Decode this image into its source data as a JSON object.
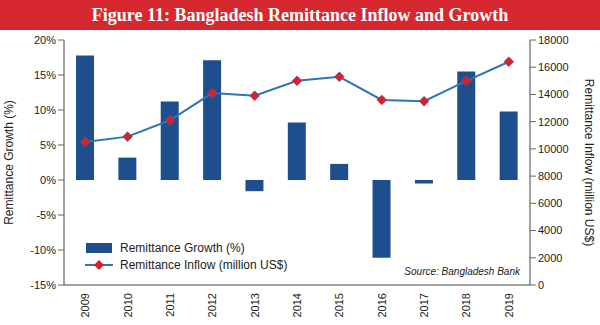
{
  "chart_data": {
    "type": "bar",
    "title": "Figure 11: Bangladesh Remittance Inflow and Growth",
    "categories": [
      "2009",
      "2010",
      "2011",
      "2012",
      "2013",
      "2014",
      "2015",
      "2016",
      "2017",
      "2018",
      "2019"
    ],
    "series": [
      {
        "name": "Remittance Growth (%)",
        "type": "bar",
        "color": "#1f4e8c",
        "values": [
          17.8,
          3.2,
          11.2,
          17.1,
          -1.6,
          8.2,
          2.3,
          -11.1,
          -0.5,
          15.5,
          9.8
        ]
      },
      {
        "name": "Remittance Inflow (million US$)",
        "type": "line",
        "color": "#2e75b6",
        "marker": "diamond",
        "axis": "y2",
        "values": [
          10500,
          10900,
          12100,
          14100,
          13900,
          15000,
          15300,
          13600,
          13500,
          15000,
          16400
        ]
      }
    ],
    "y_label": "Remittance Growth (%)",
    "y2_label": "Remittance Inflow (million US$)",
    "ylim": [
      -15,
      20
    ],
    "yticks": [
      {
        "value": -15,
        "label": "-15%"
      },
      {
        "value": -10,
        "label": "-10%"
      },
      {
        "value": -5,
        "label": "-5%"
      },
      {
        "value": 0,
        "label": "0%"
      },
      {
        "value": 5,
        "label": "5%"
      },
      {
        "value": 10,
        "label": "10%"
      },
      {
        "value": 15,
        "label": "15%"
      },
      {
        "value": 20,
        "label": "20%"
      }
    ],
    "y2lim": [
      0,
      18000
    ],
    "y2ticks": [
      0,
      2000,
      4000,
      6000,
      8000,
      10000,
      12000,
      14000,
      16000,
      18000
    ],
    "legend": "lower left",
    "grid": false,
    "source": "Source: Bangladesh Bank"
  }
}
